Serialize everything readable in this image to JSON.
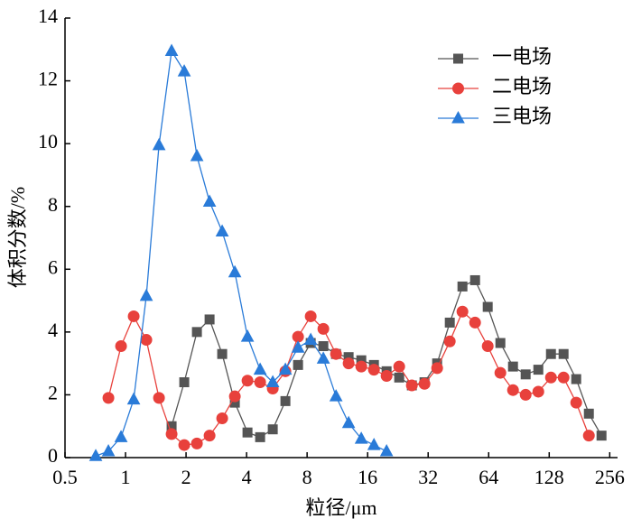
{
  "chart_data": {
    "type": "line",
    "xlabel": "粒径/μm",
    "ylabel": "体积分数/%",
    "x": [
      0.711,
      0.822,
      0.95,
      1.098,
      1.269,
      1.467,
      1.695,
      1.959,
      2.265,
      2.618,
      3.025,
      3.497,
      4.042,
      4.671,
      5.399,
      6.24,
      7.213,
      8.337,
      9.636,
      11.14,
      12.87,
      14.88,
      17.2,
      19.88,
      22.97,
      26.55,
      30.69,
      35.47,
      41.0,
      47.39,
      54.77,
      63.3,
      73.17,
      84.57,
      97.74,
      113.0,
      130.6,
      150.9,
      174.4,
      201.6,
      233.0
    ],
    "series": [
      {
        "name": "一电场",
        "color": "#555555",
        "marker": "square",
        "values": [
          null,
          null,
          null,
          null,
          null,
          null,
          1.0,
          2.4,
          4.0,
          4.4,
          3.3,
          1.75,
          0.8,
          0.65,
          0.9,
          1.8,
          2.95,
          3.65,
          3.55,
          3.3,
          3.2,
          3.1,
          2.95,
          2.75,
          2.55,
          2.3,
          2.4,
          3.0,
          4.3,
          5.45,
          5.65,
          4.8,
          3.65,
          2.9,
          2.65,
          2.8,
          3.3,
          3.3,
          2.5,
          1.4,
          0.7
        ]
      },
      {
        "name": "二电场",
        "color": "#e8413c",
        "marker": "circle",
        "values": [
          null,
          1.9,
          3.55,
          4.5,
          3.75,
          1.9,
          0.75,
          0.4,
          0.45,
          0.7,
          1.25,
          1.95,
          2.45,
          2.4,
          2.2,
          2.75,
          3.85,
          4.5,
          4.1,
          3.3,
          3.0,
          2.9,
          2.8,
          2.6,
          2.9,
          2.3,
          2.35,
          2.85,
          3.7,
          4.65,
          4.3,
          3.55,
          2.7,
          2.15,
          2.0,
          2.1,
          2.55,
          2.55,
          1.75,
          0.7,
          null
        ]
      },
      {
        "name": "三电场",
        "color": "#2a7bd8",
        "marker": "triangle",
        "values": [
          0.05,
          0.2,
          0.65,
          1.85,
          5.15,
          9.95,
          12.95,
          12.3,
          9.6,
          8.15,
          7.2,
          5.9,
          3.85,
          2.8,
          2.4,
          2.8,
          3.5,
          3.75,
          3.15,
          1.95,
          1.1,
          0.6,
          0.4,
          0.2,
          null,
          null,
          null,
          null,
          null,
          null,
          null,
          null,
          null,
          null,
          null,
          null,
          null,
          null,
          null,
          null,
          null
        ]
      }
    ],
    "xscale": "log",
    "xlim": [
      0.5,
      280
    ],
    "xticks": [
      0.5,
      1,
      2,
      4,
      8,
      16,
      32,
      64,
      128,
      256
    ],
    "ylim": [
      0,
      14
    ],
    "yticks": [
      0,
      2,
      4,
      6,
      8,
      10,
      12,
      14
    ],
    "grid": false,
    "legend": "upper right"
  }
}
